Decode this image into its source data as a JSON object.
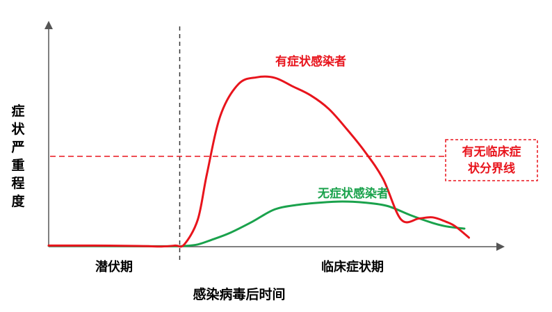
{
  "chart_data": {
    "type": "line",
    "xlabel": "感染病毒后时间",
    "ylabel": "症状严重程度",
    "x_range": [
      0,
      100
    ],
    "y_range": [
      0,
      100
    ],
    "phases": [
      {
        "label": "潜伏期",
        "x": 18
      },
      {
        "label": "临床症状期",
        "x": 68
      }
    ],
    "phase_divider_x": 29,
    "threshold": {
      "y": 40,
      "label_lines": [
        "有无临床症",
        "状分界线"
      ]
    },
    "series": [
      {
        "name": "有症状感染者",
        "color": "#e8141c",
        "x": [
          0,
          10,
          20,
          25,
          28,
          30,
          33,
          35,
          38,
          42,
          46,
          50,
          54,
          58,
          62,
          66,
          70,
          74,
          78,
          82,
          85,
          88,
          90,
          93
        ],
        "y": [
          0.5,
          0.5,
          0.3,
          0.1,
          0.5,
          1.0,
          12.0,
          32.0,
          58.0,
          72.0,
          75.0,
          74.8,
          71.0,
          67.0,
          61.0,
          52.0,
          42.0,
          30.0,
          12.0,
          12.5,
          13.0,
          11.0,
          9.0,
          4.0
        ]
      },
      {
        "name": "无症状感染者",
        "color": "#1aa24c",
        "x": [
          0,
          10,
          20,
          25,
          28,
          30,
          33,
          36,
          40,
          45,
          50,
          55,
          60,
          65,
          70,
          75,
          80,
          85,
          88,
          92
        ],
        "y": [
          0.4,
          0.3,
          0.2,
          0.2,
          0.2,
          0.3,
          1.0,
          3.0,
          6.0,
          11.0,
          16.5,
          18.5,
          19.5,
          20.0,
          19.5,
          18.0,
          14.0,
          10.5,
          9.0,
          8.0
        ]
      }
    ]
  },
  "colors": {
    "axis": "#555555",
    "threshold": "#e8141c",
    "symptomatic_label": "#e8141c",
    "asymptomatic_label": "#1aa24c"
  }
}
